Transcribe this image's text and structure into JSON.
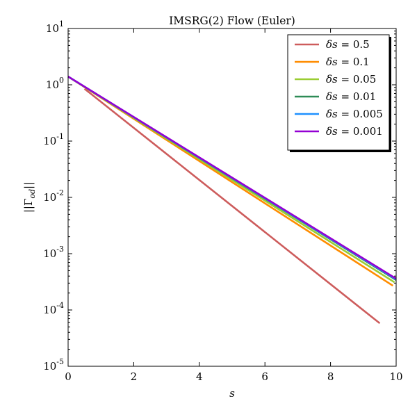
{
  "chart_data": {
    "type": "line",
    "title": "IMSRG(2) Flow (Euler)",
    "xlabel": "s",
    "ylabel": "||Γod||",
    "ylabel_parts": {
      "prefix": "||Γ",
      "sub": "od",
      "suffix": "||"
    },
    "xlim": [
      0,
      10
    ],
    "ylim": [
      1e-05,
      10
    ],
    "yscale": "log",
    "xticks": [
      "0",
      "2",
      "4",
      "6",
      "8",
      "10"
    ],
    "yticks": [
      {
        "base": "10",
        "exp": "-5"
      },
      {
        "base": "10",
        "exp": "-4"
      },
      {
        "base": "10",
        "exp": "-3"
      },
      {
        "base": "10",
        "exp": "-2"
      },
      {
        "base": "10",
        "exp": "-1"
      },
      {
        "base": "10",
        "exp": "0"
      },
      {
        "base": "10",
        "exp": "1"
      }
    ],
    "grid": false,
    "legend_position": "top-right",
    "series": [
      {
        "name": "0.5",
        "color": "#cd5c5c",
        "x": [
          0.5,
          9.5
        ],
        "y": [
          0.85,
          5.8e-05
        ]
      },
      {
        "name": "0.1",
        "color": "#ff8c00",
        "x": [
          0,
          9.9
        ],
        "y": [
          1.4,
          0.00027
        ]
      },
      {
        "name": "0.05",
        "color": "#9acd32",
        "x": [
          0,
          9.95
        ],
        "y": [
          1.4,
          0.00031
        ]
      },
      {
        "name": "0.01",
        "color": "#2e8b57",
        "x": [
          0,
          10
        ],
        "y": [
          1.4,
          0.00034
        ]
      },
      {
        "name": "0.005",
        "color": "#1e90ff",
        "x": [
          0,
          10
        ],
        "y": [
          1.4,
          0.00035
        ]
      },
      {
        "name": "0.001",
        "color": "#9400d3",
        "x": [
          0,
          10
        ],
        "y": [
          1.4,
          0.00036
        ]
      }
    ],
    "legend_prefix": "δs ="
  }
}
